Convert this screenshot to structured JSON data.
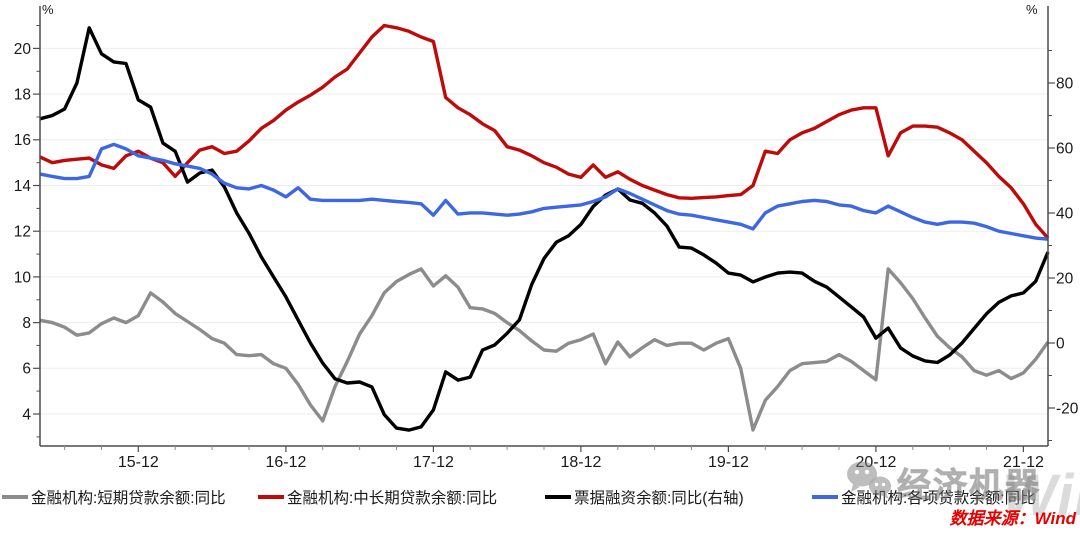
{
  "chart_data": {
    "type": "line",
    "title": "",
    "x_start": "2015-04",
    "x_end": "2022-02",
    "x_frequency": "monthly",
    "grid": "horizontal",
    "legend_position": "bottom",
    "left_axis": {
      "unit": "%",
      "ticks": [
        4,
        6,
        8,
        10,
        12,
        14,
        16,
        18,
        20
      ],
      "range": [
        2.6,
        21.7
      ]
    },
    "right_axis": {
      "unit": "%",
      "ticks": [
        -20,
        0,
        20,
        40,
        60,
        80
      ],
      "range": [
        -31.5,
        102.5
      ]
    },
    "x_ticks": [
      {
        "label": "15-12",
        "index": 8
      },
      {
        "label": "16-12",
        "index": 20
      },
      {
        "label": "17-12",
        "index": 32
      },
      {
        "label": "18-12",
        "index": 44
      },
      {
        "label": "19-12",
        "index": 56
      },
      {
        "label": "20-12",
        "index": 68
      },
      {
        "label": "21-12",
        "index": 80
      }
    ],
    "series": [
      {
        "name": "金融机构:短期贷款余额:同比",
        "color": "#8c8c8c",
        "axis": "left",
        "values": [
          8.1,
          8.0,
          7.8,
          7.45,
          7.55,
          7.95,
          8.2,
          8.0,
          8.3,
          9.3,
          8.9,
          8.4,
          8.05,
          7.7,
          7.3,
          7.1,
          6.6,
          6.55,
          6.6,
          6.2,
          6.0,
          5.3,
          4.4,
          3.7,
          5.2,
          6.3,
          7.5,
          8.3,
          9.3,
          9.8,
          10.1,
          10.35,
          9.6,
          10.05,
          9.55,
          8.65,
          8.6,
          8.4,
          8.0,
          7.65,
          7.2,
          6.8,
          6.75,
          7.1,
          7.25,
          7.5,
          6.2,
          7.15,
          6.5,
          6.9,
          7.25,
          7.0,
          7.1,
          7.1,
          6.8,
          7.1,
          7.3,
          6.0,
          3.3,
          4.6,
          5.2,
          5.9,
          6.2,
          6.25,
          6.3,
          6.6,
          6.3,
          5.9,
          5.5,
          10.35,
          9.75,
          9.05,
          8.2,
          7.4,
          6.9,
          6.5,
          5.9,
          5.7,
          5.9,
          5.55,
          5.8,
          6.4,
          7.15
        ]
      },
      {
        "name": "金融机构:中长期贷款余额:同比",
        "color": "#bf0a0a",
        "axis": "left",
        "values": [
          15.25,
          15.0,
          15.1,
          15.15,
          15.2,
          14.9,
          14.75,
          15.3,
          15.5,
          15.2,
          15.0,
          14.4,
          15.0,
          15.55,
          15.7,
          15.4,
          15.5,
          15.95,
          16.5,
          16.85,
          17.3,
          17.65,
          17.95,
          18.3,
          18.75,
          19.1,
          19.8,
          20.5,
          21.0,
          20.9,
          20.75,
          20.5,
          20.3,
          17.85,
          17.4,
          17.1,
          16.7,
          16.4,
          15.7,
          15.55,
          15.3,
          15.0,
          14.8,
          14.5,
          14.36,
          14.9,
          14.36,
          14.6,
          14.27,
          14.0,
          13.8,
          13.6,
          13.46,
          13.44,
          13.47,
          13.5,
          13.56,
          13.6,
          14.0,
          15.5,
          15.4,
          16.0,
          16.3,
          16.5,
          16.8,
          17.1,
          17.3,
          17.4,
          17.4,
          15.3,
          16.3,
          16.6,
          16.6,
          16.55,
          16.3,
          16.0,
          15.5,
          15.0,
          14.4,
          13.9,
          13.2,
          12.3,
          11.7
        ]
      },
      {
        "name": "票据融资余额:同比(右轴)",
        "color": "#000000",
        "axis": "right",
        "values": [
          69,
          70,
          72,
          80,
          97,
          89,
          86.5,
          86,
          74.8,
          72.6,
          61.5,
          59,
          49.5,
          52.3,
          53.2,
          48,
          40,
          33.8,
          26.5,
          20.3,
          14.2,
          7.1,
          0,
          -6.2,
          -11,
          -12.3,
          -12,
          -13.5,
          -22,
          -26.2,
          -26.8,
          -25.8,
          -20.6,
          -8.9,
          -11.4,
          -10.5,
          -2.2,
          -0.6,
          3,
          7.1,
          18,
          26,
          31,
          33,
          36.5,
          42,
          45.5,
          47.4,
          44,
          43,
          40,
          36,
          29.5,
          29.2,
          27.1,
          24.6,
          21.5,
          20.9,
          18.8,
          20.3,
          21.5,
          21.8,
          21.5,
          19,
          17.2,
          14.2,
          11.1,
          8,
          1.5,
          4.6,
          -1.5,
          -4,
          -5.5,
          -6,
          -3.7,
          0,
          4.5,
          9,
          12.5,
          14.5,
          15.4,
          19,
          28
        ]
      },
      {
        "name": "金融机构:各项贷款余额:同比",
        "color": "#3d68e1",
        "axis": "left",
        "values": [
          14.5,
          14.4,
          14.3,
          14.3,
          14.4,
          15.6,
          15.8,
          15.6,
          15.3,
          15.2,
          15.1,
          14.95,
          14.85,
          14.75,
          14.5,
          14.1,
          13.9,
          13.85,
          14.0,
          13.8,
          13.5,
          13.9,
          13.4,
          13.35,
          13.35,
          13.35,
          13.35,
          13.4,
          13.35,
          13.3,
          13.26,
          13.2,
          12.7,
          13.35,
          12.75,
          12.8,
          12.8,
          12.75,
          12.7,
          12.75,
          12.85,
          13.0,
          13.05,
          13.1,
          13.15,
          13.3,
          13.5,
          13.85,
          13.65,
          13.4,
          13.15,
          12.9,
          12.75,
          12.7,
          12.6,
          12.5,
          12.4,
          12.3,
          12.1,
          12.8,
          13.1,
          13.2,
          13.3,
          13.35,
          13.3,
          13.15,
          13.1,
          12.9,
          12.8,
          13.1,
          12.85,
          12.6,
          12.4,
          12.3,
          12.4,
          12.4,
          12.35,
          12.2,
          12.0,
          11.9,
          11.8,
          11.7,
          11.65
        ]
      }
    ]
  },
  "watermark": {
    "brand": "经济机器",
    "overlay": "Wind"
  },
  "footer": {
    "source": "数据来源：Wind"
  }
}
